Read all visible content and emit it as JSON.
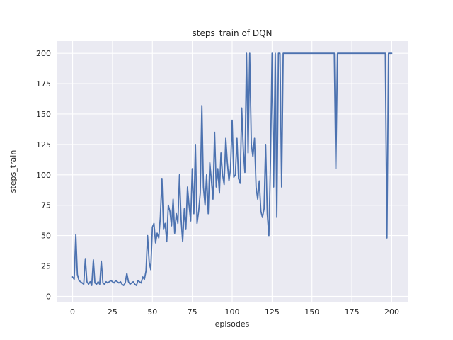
{
  "chart_data": {
    "type": "line",
    "title": "steps_train of DQN",
    "xlabel": "episodes",
    "ylabel": "steps_train",
    "x_start": 0,
    "xlim": [
      -10,
      210
    ],
    "ylim": [
      -5,
      210
    ],
    "xticks": [
      0,
      25,
      50,
      75,
      100,
      125,
      150,
      175,
      200
    ],
    "yticks": [
      0,
      25,
      50,
      75,
      100,
      125,
      150,
      175,
      200
    ],
    "grid": true,
    "legend": "none",
    "style": {
      "plot_bg": "#eaeaf2",
      "grid_color": "#ffffff",
      "line_color": "#4c72b0",
      "text_color": "#262626",
      "line_width": 1.8
    },
    "series": [
      {
        "name": "steps_train",
        "color": "#4c72b0",
        "values": [
          16,
          14,
          51,
          18,
          13,
          12,
          11,
          10,
          31,
          12,
          10,
          12,
          9,
          30,
          11,
          10,
          12,
          10,
          29,
          11,
          10,
          12,
          11,
          12,
          13,
          12,
          11,
          13,
          12,
          11,
          12,
          10,
          9,
          11,
          19,
          12,
          10,
          11,
          12,
          10,
          9,
          13,
          12,
          11,
          16,
          14,
          21,
          50,
          28,
          22,
          57,
          60,
          44,
          52,
          48,
          65,
          97,
          55,
          60,
          45,
          75,
          70,
          58,
          80,
          52,
          68,
          60,
          100,
          63,
          45,
          72,
          55,
          90,
          75,
          62,
          105,
          68,
          125,
          60,
          70,
          85,
          157,
          90,
          75,
          100,
          68,
          110,
          95,
          80,
          135,
          90,
          105,
          85,
          118,
          100,
          92,
          130,
          110,
          95,
          105,
          145,
          98,
          100,
          130,
          97,
          93,
          155,
          120,
          102,
          200,
          118,
          200,
          125,
          115,
          130,
          90,
          80,
          95,
          70,
          65,
          72,
          125,
          68,
          50,
          110,
          200,
          90,
          200,
          65,
          200,
          200,
          90,
          200,
          200,
          200,
          200,
          200,
          200,
          200,
          200,
          200,
          200,
          200,
          200,
          200,
          200,
          200,
          200,
          200,
          200,
          200,
          200,
          200,
          200,
          200,
          200,
          200,
          200,
          200,
          200,
          200,
          200,
          200,
          200,
          200,
          105,
          200,
          200,
          200,
          200,
          200,
          200,
          200,
          200,
          200,
          200,
          200,
          200,
          200,
          200,
          200,
          200,
          200,
          200,
          200,
          200,
          200,
          200,
          200,
          200,
          200,
          200,
          200,
          200,
          200,
          200,
          200,
          48,
          200,
          200,
          200
        ]
      }
    ]
  }
}
